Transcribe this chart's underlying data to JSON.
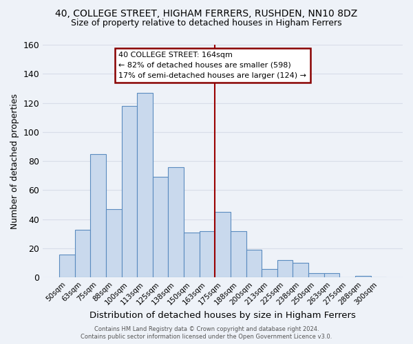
{
  "title": "40, COLLEGE STREET, HIGHAM FERRERS, RUSHDEN, NN10 8DZ",
  "subtitle": "Size of property relative to detached houses in Higham Ferrers",
  "xlabel": "Distribution of detached houses by size in Higham Ferrers",
  "ylabel": "Number of detached properties",
  "bin_labels": [
    "50sqm",
    "63sqm",
    "75sqm",
    "88sqm",
    "100sqm",
    "113sqm",
    "125sqm",
    "138sqm",
    "150sqm",
    "163sqm",
    "175sqm",
    "188sqm",
    "200sqm",
    "213sqm",
    "225sqm",
    "238sqm",
    "250sqm",
    "263sqm",
    "275sqm",
    "288sqm",
    "300sqm"
  ],
  "bar_heights": [
    16,
    33,
    85,
    47,
    118,
    127,
    69,
    76,
    31,
    32,
    45,
    32,
    19,
    6,
    12,
    10,
    3,
    3,
    0,
    1,
    0
  ],
  "bar_color": "#c9d9ed",
  "bar_edge_color": "#5a8bbf",
  "marker_index": 9,
  "annotation_title": "40 COLLEGE STREET: 164sqm",
  "annotation_line1": "← 82% of detached houses are smaller (598)",
  "annotation_line2": "17% of semi-detached houses are larger (124) →",
  "ylim": [
    0,
    160
  ],
  "yticks": [
    0,
    20,
    40,
    60,
    80,
    100,
    120,
    140,
    160
  ],
  "footer1": "Contains HM Land Registry data © Crown copyright and database right 2024.",
  "footer2": "Contains public sector information licensed under the Open Government Licence v3.0.",
  "bg_color": "#eef2f8",
  "grid_color": "#d8dde8",
  "marker_color": "#990000",
  "annotation_box_color": "#880000",
  "title_fontsize": 10,
  "subtitle_fontsize": 9
}
